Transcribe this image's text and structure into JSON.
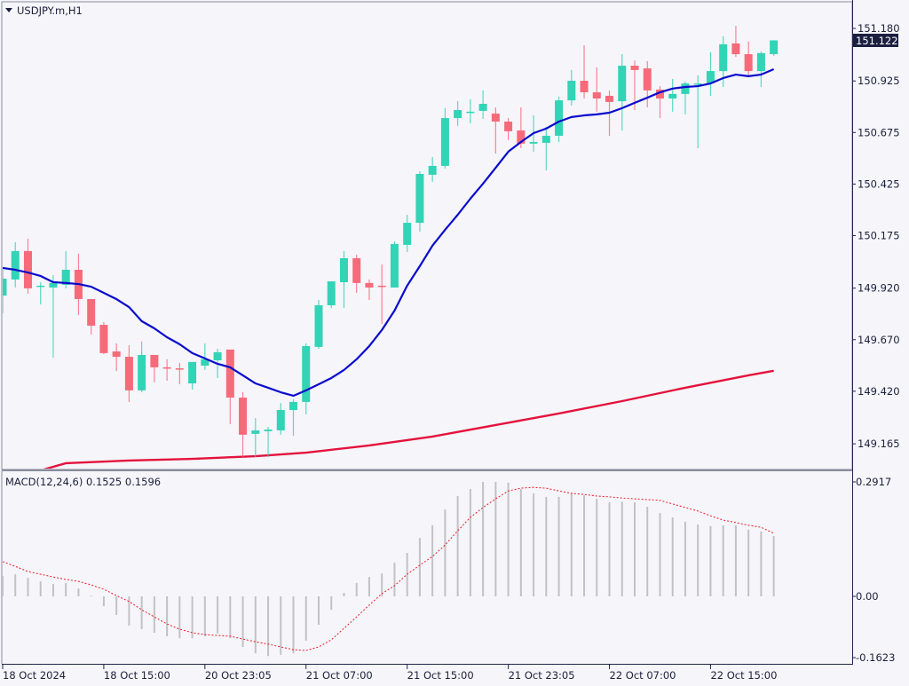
{
  "window": {
    "title": "USDJPY.m,H1"
  },
  "current_price_label": "151.122",
  "macd_label": "MACD(12,24,6) 0.1525 0.1596",
  "colors": {
    "background": "#f5f5fa",
    "bull": "#33d3b6",
    "bear": "#f76a7a",
    "ma_fast": "#0a0acc",
    "ma_slow": "#e4123c",
    "macd_hist": "#c2c2c6",
    "macd_signal": "#ee1c24",
    "axis": "#23264a",
    "price_tag": "#1b1f3f"
  },
  "chart_data": [
    {
      "type": "candlestick",
      "title": "USDJPY.m,H1",
      "price_axis_labels": [
        "151.180",
        "150.925",
        "150.675",
        "150.425",
        "150.175",
        "149.920",
        "149.670",
        "149.420",
        "149.165"
      ],
      "ylim": [
        149.04,
        151.32
      ],
      "time_labels": [
        {
          "index": 1,
          "label": "18 Oct 2024"
        },
        {
          "index": 9,
          "label": "18 Oct 15:00"
        },
        {
          "index": 17,
          "label": "20 Oct 23:05"
        },
        {
          "index": 25,
          "label": "21 Oct 07:00"
        },
        {
          "index": 33,
          "label": "21 Oct 15:00"
        },
        {
          "index": 41,
          "label": "21 Oct 23:05"
        },
        {
          "index": 49,
          "label": "22 Oct 07:00"
        },
        {
          "index": 57,
          "label": "22 Oct 15:00"
        }
      ],
      "ohlc": [
        [
          149.884,
          150.013,
          149.798,
          149.966
        ],
        [
          149.962,
          150.143,
          149.923,
          150.1
        ],
        [
          150.1,
          150.16,
          149.893,
          149.919
        ],
        [
          149.927,
          149.949,
          149.841,
          149.932
        ],
        [
          149.923,
          149.983,
          149.583,
          149.945
        ],
        [
          149.936,
          150.1,
          149.919,
          150.009
        ],
        [
          150.009,
          150.087,
          149.79,
          149.867
        ],
        [
          149.867,
          149.867,
          149.695,
          149.738
        ],
        [
          149.742,
          149.755,
          149.6,
          149.605
        ],
        [
          149.613,
          149.652,
          149.518,
          149.587
        ],
        [
          149.587,
          149.643,
          149.368,
          149.424
        ],
        [
          149.424,
          149.661,
          149.415,
          149.596
        ],
        [
          149.596,
          149.596,
          149.463,
          149.536
        ],
        [
          149.536,
          149.575,
          149.471,
          149.531
        ],
        [
          149.531,
          149.557,
          149.454,
          149.527
        ],
        [
          149.458,
          149.562,
          149.428,
          149.562
        ],
        [
          149.544,
          149.652,
          149.523,
          149.575
        ],
        [
          149.57,
          149.626,
          149.484,
          149.609
        ],
        [
          149.622,
          149.622,
          149.26,
          149.389
        ],
        [
          149.389,
          149.415,
          149.101,
          149.209
        ],
        [
          149.213,
          149.29,
          149.101,
          149.23
        ],
        [
          149.226,
          149.247,
          149.101,
          149.234
        ],
        [
          149.23,
          149.363,
          149.209,
          149.329
        ],
        [
          149.329,
          149.381,
          149.204,
          149.368
        ],
        [
          149.368,
          149.652,
          149.308,
          149.639
        ],
        [
          149.635,
          149.863,
          149.626,
          149.837
        ],
        [
          149.837,
          149.953,
          149.824,
          149.953
        ],
        [
          149.949,
          150.1,
          149.824,
          150.065
        ],
        [
          150.065,
          150.082,
          149.897,
          149.945
        ],
        [
          149.945,
          149.962,
          149.863,
          149.923
        ],
        [
          149.932,
          150.035,
          149.747,
          149.927
        ],
        [
          149.923,
          150.147,
          149.923,
          150.134
        ],
        [
          150.13,
          150.276,
          150.095,
          150.237
        ],
        [
          150.237,
          150.487,
          150.194,
          150.474
        ],
        [
          150.47,
          150.556,
          150.436,
          150.513
        ],
        [
          150.513,
          150.793,
          150.5,
          150.745
        ],
        [
          150.745,
          150.827,
          150.707,
          150.784
        ],
        [
          150.771,
          150.836,
          150.72,
          150.776
        ],
        [
          150.78,
          150.879,
          150.741,
          150.814
        ],
        [
          150.767,
          150.797,
          150.573,
          150.728
        ],
        [
          150.728,
          150.745,
          150.638,
          150.681
        ],
        [
          150.685,
          150.797,
          150.599,
          150.621
        ],
        [
          150.621,
          150.758,
          150.582,
          150.629
        ],
        [
          150.625,
          150.702,
          150.491,
          150.659
        ],
        [
          150.659,
          150.849,
          150.629,
          150.831
        ],
        [
          150.831,
          150.978,
          150.806,
          150.926
        ],
        [
          150.926,
          151.098,
          150.84,
          150.87
        ],
        [
          150.87,
          150.991,
          150.776,
          150.84
        ],
        [
          150.853,
          150.879,
          150.659,
          150.823
        ],
        [
          150.827,
          151.055,
          150.685,
          150.999
        ],
        [
          150.999,
          151.025,
          150.784,
          150.978
        ],
        [
          150.986,
          151.021,
          150.797,
          150.879
        ],
        [
          150.883,
          150.9,
          150.745,
          150.84
        ],
        [
          150.84,
          150.935,
          150.776,
          150.862
        ],
        [
          150.862,
          150.922,
          150.763,
          150.913
        ],
        [
          150.909,
          150.952,
          150.599,
          150.913
        ],
        [
          150.913,
          151.064,
          150.853,
          150.973
        ],
        [
          150.973,
          151.142,
          150.896,
          151.103
        ],
        [
          151.107,
          151.193,
          151.042,
          151.055
        ],
        [
          151.055,
          151.116,
          150.943,
          150.973
        ],
        [
          150.973,
          151.068,
          150.896,
          151.06
        ],
        [
          151.055,
          151.122,
          151.047,
          151.122
        ]
      ],
      "ma_fast": [
        150.018,
        150.009,
        149.996,
        149.979,
        149.949,
        149.945,
        149.94,
        149.927,
        149.897,
        149.867,
        149.828,
        149.76,
        149.725,
        149.682,
        149.648,
        149.605,
        149.579,
        149.553,
        149.536,
        149.497,
        149.458,
        149.437,
        149.415,
        149.398,
        149.424,
        149.454,
        149.484,
        149.523,
        149.575,
        149.639,
        149.717,
        149.811,
        149.932,
        150.027,
        150.126,
        150.203,
        150.276,
        150.354,
        150.427,
        150.504,
        150.582,
        150.629,
        150.672,
        150.694,
        150.728,
        150.75,
        150.758,
        150.763,
        150.771,
        150.793,
        150.819,
        150.844,
        150.87,
        150.888,
        150.896,
        150.9,
        150.913,
        150.939,
        150.956,
        150.948,
        150.956,
        150.982
      ],
      "ma_slow": [
        [
          4,
          149.036
        ],
        [
          6,
          149.071
        ],
        [
          11,
          149.084
        ],
        [
          16,
          149.092
        ],
        [
          21,
          149.105
        ],
        [
          25,
          149.122
        ],
        [
          30,
          149.157
        ],
        [
          35,
          149.2
        ],
        [
          40,
          149.256
        ],
        [
          45,
          149.312
        ],
        [
          50,
          149.372
        ],
        [
          55,
          149.437
        ],
        [
          60,
          149.497
        ],
        [
          62,
          149.519
        ]
      ]
    },
    {
      "type": "bar",
      "title": "MACD(12,24,6)",
      "axis_labels": [
        "0.2917",
        "0.00",
        "-0.1623"
      ],
      "ylim": [
        -0.1623,
        0.2917
      ],
      "histogram": [
        0.052,
        0.056,
        0.047,
        0.038,
        0.031,
        0.034,
        0.02,
        0.002,
        -0.025,
        -0.047,
        -0.074,
        -0.083,
        -0.092,
        -0.101,
        -0.106,
        -0.106,
        -0.101,
        -0.094,
        -0.106,
        -0.128,
        -0.144,
        -0.151,
        -0.148,
        -0.144,
        -0.112,
        -0.072,
        -0.034,
        0.009,
        0.034,
        0.049,
        0.058,
        0.085,
        0.11,
        0.148,
        0.18,
        0.22,
        0.254,
        0.272,
        0.29,
        0.29,
        0.288,
        0.272,
        0.261,
        0.252,
        0.252,
        0.261,
        0.256,
        0.247,
        0.238,
        0.24,
        0.238,
        0.227,
        0.211,
        0.2,
        0.189,
        0.182,
        0.178,
        0.18,
        0.18,
        0.169,
        0.164,
        0.1525
      ],
      "signal": [
        0.088,
        0.076,
        0.063,
        0.056,
        0.049,
        0.043,
        0.038,
        0.029,
        0.018,
        0.002,
        -0.013,
        -0.034,
        -0.052,
        -0.07,
        -0.083,
        -0.092,
        -0.097,
        -0.099,
        -0.101,
        -0.108,
        -0.115,
        -0.121,
        -0.128,
        -0.135,
        -0.137,
        -0.128,
        -0.11,
        -0.081,
        -0.052,
        -0.022,
        0.007,
        0.027,
        0.056,
        0.079,
        0.101,
        0.13,
        0.166,
        0.2,
        0.225,
        0.247,
        0.267,
        0.274,
        0.276,
        0.274,
        0.267,
        0.261,
        0.258,
        0.254,
        0.252,
        0.249,
        0.247,
        0.245,
        0.243,
        0.234,
        0.225,
        0.216,
        0.204,
        0.193,
        0.187,
        0.18,
        0.175,
        0.1596
      ]
    }
  ]
}
